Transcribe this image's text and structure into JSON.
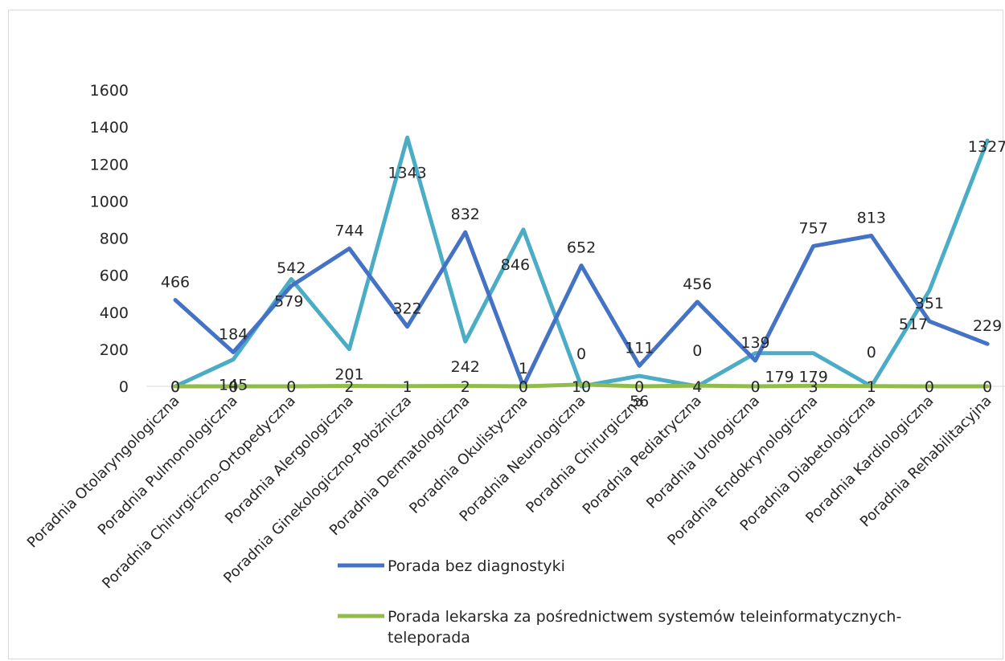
{
  "chart_data": {
    "type": "line",
    "categories": [
      "Poradnia Otolaryngologiczna",
      "Poradnia Pulmonologiczna",
      "Poradnia Chirurgiczno-Ortopedyczna",
      "Poradnia Alergologiczna",
      "Poradnia Ginekologiczno-Położnicza",
      "Poradnia Dermatologiczna",
      "Poradnia Okulistyczna",
      "Poradnia Neurologiczna",
      "Poradnia Chirurgiczna",
      "Poradnia Pediatryczna",
      "Poradnia Urologiczna",
      "Poradnia Endokrynologiczna",
      "Poradnia Diabetologiczna",
      "Poradnia Kardiologiczna",
      "Poradnia Rehabilitacyjna"
    ],
    "series": [
      {
        "name": "Porada bez diagnostyki",
        "color": "#4472c4",
        "values": [
          466,
          184,
          542,
          744,
          322,
          832,
          1,
          652,
          111,
          456,
          139,
          757,
          813,
          351,
          229
        ]
      },
      {
        "name": "",
        "color": "#4bacc6",
        "values": [
          0,
          145,
          579,
          201,
          1343,
          242,
          846,
          0,
          56,
          0,
          179,
          179,
          0,
          517,
          1327
        ]
      },
      {
        "name": "Porada lekarska za pośrednictwem systemów teleinformatycznych- teleporada",
        "color": "#92bb4d",
        "values": [
          0,
          0,
          0,
          2,
          1,
          2,
          0,
          10,
          0,
          4,
          0,
          3,
          1,
          0,
          0
        ]
      }
    ],
    "yticks": [
      "0",
      "200",
      "400",
      "600",
      "800",
      "1000",
      "1200",
      "1400",
      "1600"
    ],
    "ylim": [
      0,
      1600
    ],
    "grid": false,
    "legend_position": "bottom",
    "legend": {
      "line1": "Porada bez diagnostyki",
      "line2a": "Porada lekarska za pośrednictwem systemów teleinformatycznych-",
      "line2b": "teleporada"
    }
  }
}
